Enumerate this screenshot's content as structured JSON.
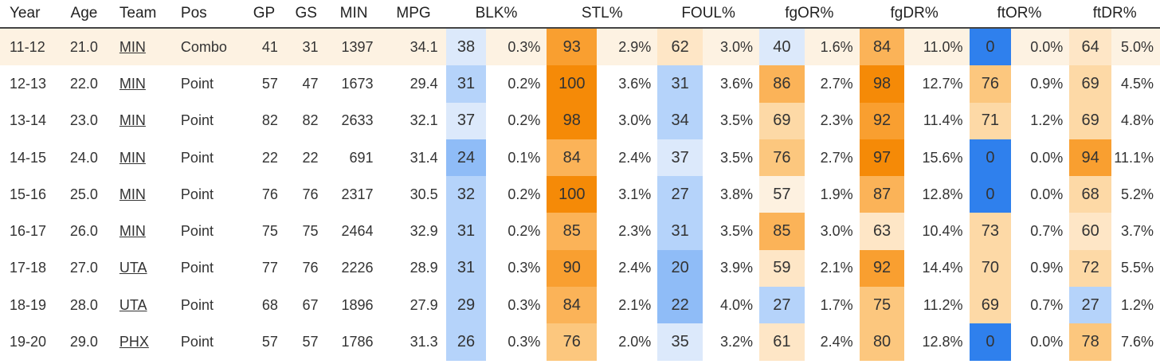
{
  "columns": [
    "Year",
    "Age",
    "Team",
    "Pos",
    "GP",
    "GS",
    "MIN",
    "MPG",
    "BLK%",
    "STL%",
    "FOUL%",
    "fgOR%",
    "fgDR%",
    "ftOR%",
    "ftDR%"
  ],
  "rows": [
    {
      "year": "11-12",
      "age": "21.0",
      "team": "MIN",
      "pos": "Combo",
      "gp": "41",
      "gs": "31",
      "min": "1397",
      "mpg": "34.1",
      "blk": [
        "38",
        "0.3%"
      ],
      "stl": [
        "93",
        "2.9%"
      ],
      "foul": [
        "62",
        "3.0%"
      ],
      "fgor": [
        "40",
        "1.6%"
      ],
      "fgdr": [
        "84",
        "11.0%"
      ],
      "ftor": [
        "0",
        "0.0%"
      ],
      "ftdr": [
        "64",
        "5.0%"
      ]
    },
    {
      "year": "12-13",
      "age": "22.0",
      "team": "MIN",
      "pos": "Point",
      "gp": "57",
      "gs": "47",
      "min": "1673",
      "mpg": "29.4",
      "blk": [
        "31",
        "0.2%"
      ],
      "stl": [
        "100",
        "3.6%"
      ],
      "foul": [
        "31",
        "3.6%"
      ],
      "fgor": [
        "86",
        "2.7%"
      ],
      "fgdr": [
        "98",
        "12.7%"
      ],
      "ftor": [
        "76",
        "0.9%"
      ],
      "ftdr": [
        "69",
        "4.5%"
      ]
    },
    {
      "year": "13-14",
      "age": "23.0",
      "team": "MIN",
      "pos": "Point",
      "gp": "82",
      "gs": "82",
      "min": "2633",
      "mpg": "32.1",
      "blk": [
        "37",
        "0.2%"
      ],
      "stl": [
        "98",
        "3.0%"
      ],
      "foul": [
        "34",
        "3.5%"
      ],
      "fgor": [
        "69",
        "2.3%"
      ],
      "fgdr": [
        "92",
        "11.4%"
      ],
      "ftor": [
        "71",
        "1.2%"
      ],
      "ftdr": [
        "69",
        "4.8%"
      ]
    },
    {
      "year": "14-15",
      "age": "24.0",
      "team": "MIN",
      "pos": "Point",
      "gp": "22",
      "gs": "22",
      "min": "691",
      "mpg": "31.4",
      "blk": [
        "24",
        "0.1%"
      ],
      "stl": [
        "84",
        "2.4%"
      ],
      "foul": [
        "37",
        "3.5%"
      ],
      "fgor": [
        "76",
        "2.7%"
      ],
      "fgdr": [
        "97",
        "15.6%"
      ],
      "ftor": [
        "0",
        "0.0%"
      ],
      "ftdr": [
        "94",
        "11.1%"
      ]
    },
    {
      "year": "15-16",
      "age": "25.0",
      "team": "MIN",
      "pos": "Point",
      "gp": "76",
      "gs": "76",
      "min": "2317",
      "mpg": "30.5",
      "blk": [
        "32",
        "0.2%"
      ],
      "stl": [
        "100",
        "3.1%"
      ],
      "foul": [
        "27",
        "3.8%"
      ],
      "fgor": [
        "57",
        "1.9%"
      ],
      "fgdr": [
        "87",
        "12.8%"
      ],
      "ftor": [
        "0",
        "0.0%"
      ],
      "ftdr": [
        "68",
        "5.2%"
      ]
    },
    {
      "year": "16-17",
      "age": "26.0",
      "team": "MIN",
      "pos": "Point",
      "gp": "75",
      "gs": "75",
      "min": "2464",
      "mpg": "32.9",
      "blk": [
        "31",
        "0.2%"
      ],
      "stl": [
        "85",
        "2.3%"
      ],
      "foul": [
        "31",
        "3.5%"
      ],
      "fgor": [
        "85",
        "3.0%"
      ],
      "fgdr": [
        "63",
        "10.4%"
      ],
      "ftor": [
        "73",
        "0.7%"
      ],
      "ftdr": [
        "60",
        "3.7%"
      ]
    },
    {
      "year": "17-18",
      "age": "27.0",
      "team": "UTA",
      "pos": "Point",
      "gp": "77",
      "gs": "76",
      "min": "2226",
      "mpg": "28.9",
      "blk": [
        "31",
        "0.3%"
      ],
      "stl": [
        "90",
        "2.4%"
      ],
      "foul": [
        "20",
        "3.9%"
      ],
      "fgor": [
        "59",
        "2.1%"
      ],
      "fgdr": [
        "92",
        "14.4%"
      ],
      "ftor": [
        "70",
        "0.9%"
      ],
      "ftdr": [
        "72",
        "5.5%"
      ]
    },
    {
      "year": "18-19",
      "age": "28.0",
      "team": "UTA",
      "pos": "Point",
      "gp": "68",
      "gs": "67",
      "min": "1896",
      "mpg": "27.9",
      "blk": [
        "29",
        "0.3%"
      ],
      "stl": [
        "84",
        "2.1%"
      ],
      "foul": [
        "22",
        "4.0%"
      ],
      "fgor": [
        "27",
        "1.7%"
      ],
      "fgdr": [
        "75",
        "11.2%"
      ],
      "ftor": [
        "69",
        "0.7%"
      ],
      "ftdr": [
        "27",
        "1.2%"
      ]
    },
    {
      "year": "19-20",
      "age": "29.0",
      "team": "PHX",
      "pos": "Point",
      "gp": "57",
      "gs": "57",
      "min": "1786",
      "mpg": "31.3",
      "blk": [
        "26",
        "0.3%"
      ],
      "stl": [
        "76",
        "2.0%"
      ],
      "foul": [
        "35",
        "3.2%"
      ],
      "fgor": [
        "61",
        "2.4%"
      ],
      "fgdr": [
        "80",
        "12.8%"
      ],
      "ftor": [
        "0",
        "0.0%"
      ],
      "ftdr": [
        "78",
        "7.6%"
      ]
    }
  ],
  "highlight_row_color": "#fdf2e2",
  "scale_colors": {
    "low": "#2f80ed",
    "low_mid": "#8fbcf7",
    "light_low": "#dce9fb",
    "neutral": "#fdf1e0",
    "light_high": "#fdd9a6",
    "high_mid": "#fbb358",
    "high": "#f58a07"
  }
}
